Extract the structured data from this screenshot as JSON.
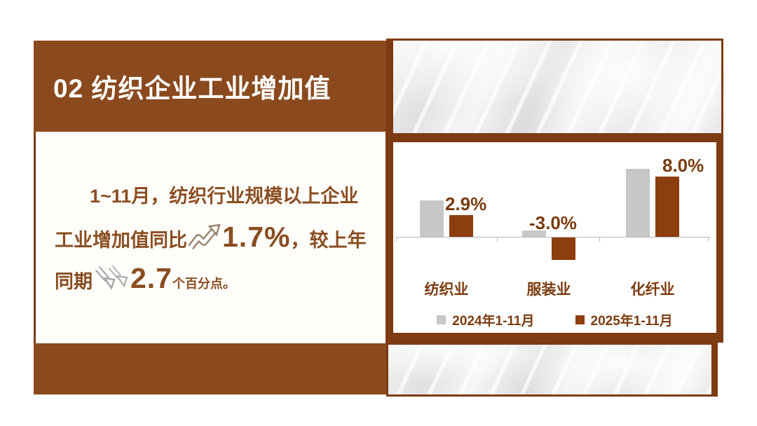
{
  "palette": {
    "brown_block": "#8a4a1e",
    "brown_border": "#7e3b12",
    "brown_bar": "#8c3e0e",
    "brown_text": "#8a4e22",
    "brown_label": "#7b3c10",
    "gray_bar": "#c7c7c7",
    "legend_gray": "#b3b3b3",
    "axis_gray": "#b9b9b9"
  },
  "header": {
    "title": "02 纺织企业工业增加值"
  },
  "summary": {
    "line1": "1~11月，纺织行业规模以上企业",
    "line2_prefix": "工业增加值同比",
    "growth_value": "1.7%",
    "line2_suffix": "，较上年",
    "line3_prefix": "同期",
    "decline_value": "2.7",
    "decline_unit": "个百分点。",
    "up_icon": "up-trend-arrow",
    "down_icon": "down-trend-arrow"
  },
  "chart_data": {
    "type": "bar",
    "title": "",
    "xlabel": "",
    "ylabel": "",
    "unit": "%",
    "categories": [
      "纺织业",
      "服装业",
      "化纤业"
    ],
    "series": [
      {
        "name": "2024年1-11月",
        "color": "#c7c7c7",
        "values": [
          4.8,
          0.8,
          9.0
        ],
        "show_labels": false,
        "labels": [
          "",
          "",
          ""
        ]
      },
      {
        "name": "2025年1-11月",
        "color": "#8c3e0e",
        "values": [
          2.9,
          -3.0,
          8.0
        ],
        "show_labels": true,
        "labels": [
          "2.9%",
          "-3.0%",
          "8.0%"
        ]
      }
    ],
    "axis": {
      "ylim": [
        -4,
        10
      ],
      "baseline": 0,
      "gridlines": false,
      "legend_position": "bottom"
    }
  }
}
